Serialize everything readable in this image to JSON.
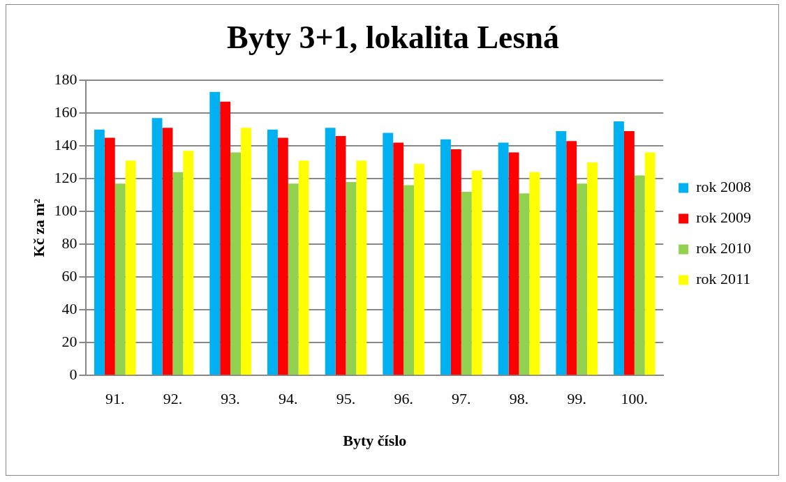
{
  "chart_data": {
    "type": "bar",
    "title": "Byty 3+1, lokalita Lesná",
    "xlabel": "Byty číslo",
    "ylabel": "Kč za m²",
    "categories": [
      "91.",
      "92.",
      "93.",
      "94.",
      "95.",
      "96.",
      "97.",
      "98.",
      "99.",
      "100."
    ],
    "series": [
      {
        "name": "rok 2008",
        "color": "#00b0f0",
        "values": [
          150,
          157,
          173,
          150,
          151,
          148,
          144,
          142,
          149,
          155
        ]
      },
      {
        "name": "rok 2009",
        "color": "#ff0000",
        "values": [
          145,
          151,
          167,
          145,
          146,
          142,
          138,
          136,
          143,
          149
        ]
      },
      {
        "name": "rok 2010",
        "color": "#92d050",
        "values": [
          117,
          124,
          136,
          117,
          118,
          116,
          112,
          111,
          117,
          122
        ]
      },
      {
        "name": "rok 2011",
        "color": "#ffff00",
        "values": [
          131,
          137,
          151,
          131,
          131,
          129,
          125,
          124,
          130,
          136
        ]
      }
    ],
    "ylim": [
      0,
      180
    ],
    "yticks": [
      0,
      20,
      40,
      60,
      80,
      100,
      120,
      140,
      160,
      180
    ],
    "grid": "y",
    "legend": "right"
  }
}
